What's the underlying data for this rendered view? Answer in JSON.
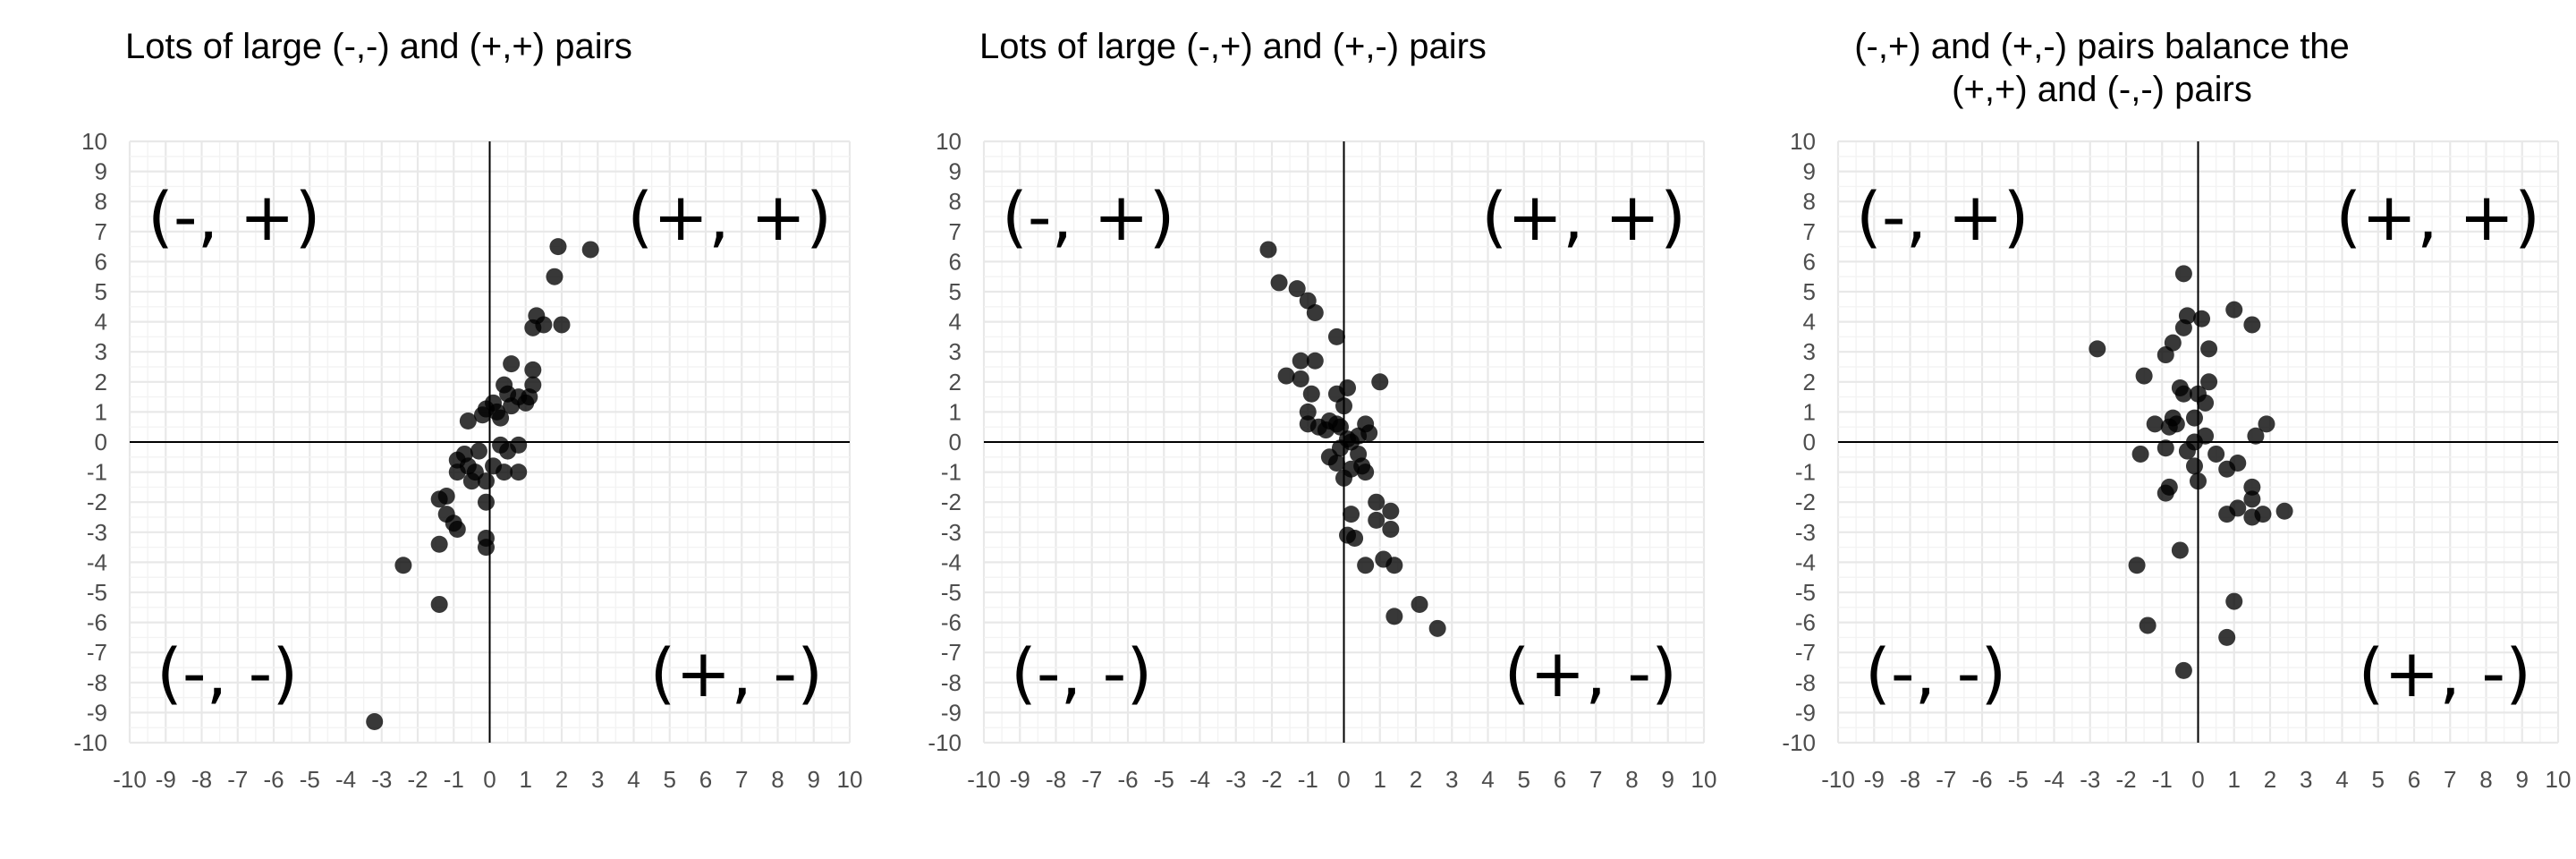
{
  "chart_data": [
    {
      "type": "scatter",
      "title": [
        "Lots of large (-,-) and (+,+) pairs"
      ],
      "xlim": [
        -10,
        10
      ],
      "ylim": [
        -10,
        10
      ],
      "x_ticks": [
        "-10",
        "-9",
        "-8",
        "-7",
        "-6",
        "-5",
        "-4",
        "-3",
        "-2",
        "-1",
        "0",
        "1",
        "2",
        "3",
        "4",
        "5",
        "6",
        "7",
        "8",
        "9",
        "10"
      ],
      "y_ticks": [
        "10",
        "9",
        "8",
        "7",
        "6",
        "5",
        "4",
        "3",
        "2",
        "1",
        "0",
        "-1",
        "-2",
        "-3",
        "-4",
        "-5",
        "-6",
        "-7",
        "-8",
        "-9",
        "-10"
      ],
      "grid": true,
      "quadrant_labels": {
        "top_left": "(-, +)",
        "top_right": "(+, +)",
        "bottom_left": "(-, -)",
        "bottom_right": "(+, -)"
      },
      "points": [
        {
          "x": -3.2,
          "y": -9.3
        },
        {
          "x": -2.4,
          "y": -4.1
        },
        {
          "x": -1.4,
          "y": -5.4
        },
        {
          "x": -1.4,
          "y": -3.4
        },
        {
          "x": -1.4,
          "y": -1.9
        },
        {
          "x": -1.2,
          "y": -2.4
        },
        {
          "x": -1.0,
          "y": -2.7
        },
        {
          "x": -0.9,
          "y": -2.9
        },
        {
          "x": -1.2,
          "y": -1.8
        },
        {
          "x": -0.9,
          "y": -1.0
        },
        {
          "x": -0.9,
          "y": -0.6
        },
        {
          "x": -0.7,
          "y": -0.4
        },
        {
          "x": -0.6,
          "y": -0.8
        },
        {
          "x": -0.5,
          "y": -1.3
        },
        {
          "x": -0.4,
          "y": -1.0
        },
        {
          "x": -0.3,
          "y": -0.3
        },
        {
          "x": -0.1,
          "y": -1.3
        },
        {
          "x": -0.1,
          "y": -2.0
        },
        {
          "x": -0.1,
          "y": -3.2
        },
        {
          "x": -0.1,
          "y": -3.5
        },
        {
          "x": -0.6,
          "y": 0.7
        },
        {
          "x": -0.2,
          "y": 0.9
        },
        {
          "x": -0.1,
          "y": 1.1
        },
        {
          "x": 0.1,
          "y": 1.3
        },
        {
          "x": 0.2,
          "y": 1.0
        },
        {
          "x": 0.3,
          "y": 0.8
        },
        {
          "x": 0.4,
          "y": 1.9
        },
        {
          "x": 0.5,
          "y": 1.6
        },
        {
          "x": 0.6,
          "y": 1.2
        },
        {
          "x": 0.6,
          "y": 2.6
        },
        {
          "x": 0.8,
          "y": 1.5
        },
        {
          "x": 1.0,
          "y": 1.3
        },
        {
          "x": 1.1,
          "y": 1.5
        },
        {
          "x": 1.2,
          "y": 1.9
        },
        {
          "x": 1.2,
          "y": 2.4
        },
        {
          "x": 1.2,
          "y": 3.8
        },
        {
          "x": 1.3,
          "y": 4.2
        },
        {
          "x": 1.5,
          "y": 3.9
        },
        {
          "x": 1.8,
          "y": 5.5
        },
        {
          "x": 1.9,
          "y": 6.5
        },
        {
          "x": 2.0,
          "y": 3.9
        },
        {
          "x": 2.8,
          "y": 6.4
        },
        {
          "x": 0.3,
          "y": -0.1
        },
        {
          "x": 0.5,
          "y": -0.3
        },
        {
          "x": 0.8,
          "y": -0.1
        },
        {
          "x": 0.4,
          "y": -1.0
        },
        {
          "x": 0.8,
          "y": -1.0
        },
        {
          "x": 0.1,
          "y": -0.8
        }
      ]
    },
    {
      "type": "scatter",
      "title": [
        "Lots of large (-,+) and (+,-) pairs"
      ],
      "xlim": [
        -10,
        10
      ],
      "ylim": [
        -10,
        10
      ],
      "x_ticks": [
        "-10",
        "-9",
        "-8",
        "-7",
        "-6",
        "-5",
        "-4",
        "-3",
        "-2",
        "-1",
        "0",
        "1",
        "2",
        "3",
        "4",
        "5",
        "6",
        "7",
        "8",
        "9",
        "10"
      ],
      "y_ticks": [
        "10",
        "9",
        "8",
        "7",
        "6",
        "5",
        "4",
        "3",
        "2",
        "1",
        "0",
        "-1",
        "-2",
        "-3",
        "-4",
        "-5",
        "-6",
        "-7",
        "-8",
        "-9",
        "-10"
      ],
      "grid": true,
      "quadrant_labels": {
        "top_left": "(-, +)",
        "top_right": "(+, +)",
        "bottom_left": "(-, -)",
        "bottom_right": "(+, -)"
      },
      "points": [
        {
          "x": -2.1,
          "y": 6.4
        },
        {
          "x": -1.8,
          "y": 5.3
        },
        {
          "x": -1.3,
          "y": 5.1
        },
        {
          "x": -1.0,
          "y": 4.7
        },
        {
          "x": -0.8,
          "y": 4.3
        },
        {
          "x": -0.2,
          "y": 3.5
        },
        {
          "x": -1.2,
          "y": 2.7
        },
        {
          "x": -0.8,
          "y": 2.7
        },
        {
          "x": -1.6,
          "y": 2.2
        },
        {
          "x": -1.2,
          "y": 2.1
        },
        {
          "x": -0.9,
          "y": 1.6
        },
        {
          "x": -1.0,
          "y": 1.0
        },
        {
          "x": -1.0,
          "y": 0.6
        },
        {
          "x": -0.7,
          "y": 0.5
        },
        {
          "x": -0.4,
          "y": 0.7
        },
        {
          "x": -0.2,
          "y": 0.6
        },
        {
          "x": 0.0,
          "y": 1.2
        },
        {
          "x": 0.1,
          "y": 1.8
        },
        {
          "x": -0.2,
          "y": 1.6
        },
        {
          "x": 1.0,
          "y": 2.0
        },
        {
          "x": 0.6,
          "y": 0.6
        },
        {
          "x": 0.4,
          "y": 0.2
        },
        {
          "x": 0.1,
          "y": 0.1
        },
        {
          "x": -0.1,
          "y": -0.2
        },
        {
          "x": -0.4,
          "y": -0.5
        },
        {
          "x": -0.2,
          "y": -0.7
        },
        {
          "x": 0.2,
          "y": -0.9
        },
        {
          "x": 0.0,
          "y": -1.2
        },
        {
          "x": 0.4,
          "y": -0.4
        },
        {
          "x": 0.5,
          "y": -0.8
        },
        {
          "x": 0.6,
          "y": -1.0
        },
        {
          "x": 0.9,
          "y": -2.0
        },
        {
          "x": 0.9,
          "y": -2.6
        },
        {
          "x": 1.3,
          "y": -2.3
        },
        {
          "x": 1.3,
          "y": -2.9
        },
        {
          "x": 0.2,
          "y": -2.4
        },
        {
          "x": 0.1,
          "y": -3.1
        },
        {
          "x": 0.3,
          "y": -3.2
        },
        {
          "x": 0.6,
          "y": -4.1
        },
        {
          "x": 1.1,
          "y": -3.9
        },
        {
          "x": 1.4,
          "y": -4.1
        },
        {
          "x": 2.1,
          "y": -5.4
        },
        {
          "x": 1.4,
          "y": -5.8
        },
        {
          "x": 2.6,
          "y": -6.2
        },
        {
          "x": -0.1,
          "y": 0.5
        },
        {
          "x": 0.2,
          "y": 0.0
        },
        {
          "x": -0.5,
          "y": 0.4
        },
        {
          "x": 0.7,
          "y": 0.3
        }
      ]
    },
    {
      "type": "scatter",
      "title": [
        "(-,+) and (+,-) pairs balance the",
        "(+,+) and (-,-) pairs"
      ],
      "xlim": [
        -10,
        10
      ],
      "ylim": [
        -10,
        10
      ],
      "x_ticks": [
        "-10",
        "-9",
        "-8",
        "-7",
        "-6",
        "-5",
        "-4",
        "-3",
        "-2",
        "-1",
        "0",
        "1",
        "2",
        "3",
        "4",
        "5",
        "6",
        "7",
        "8",
        "9",
        "10"
      ],
      "y_ticks": [
        "10",
        "9",
        "8",
        "7",
        "6",
        "5",
        "4",
        "3",
        "2",
        "1",
        "0",
        "-1",
        "-2",
        "-3",
        "-4",
        "-5",
        "-6",
        "-7",
        "-8",
        "-9",
        "-10"
      ],
      "grid": true,
      "quadrant_labels": {
        "top_left": "(-, +)",
        "top_right": "(+, +)",
        "bottom_left": "(-, -)",
        "bottom_right": "(+, -)"
      },
      "points": [
        {
          "x": -2.8,
          "y": 3.1
        },
        {
          "x": -1.5,
          "y": 2.2
        },
        {
          "x": -1.2,
          "y": 0.6
        },
        {
          "x": -1.6,
          "y": -0.4
        },
        {
          "x": -0.9,
          "y": -0.2
        },
        {
          "x": -0.7,
          "y": 0.8
        },
        {
          "x": -0.9,
          "y": 2.9
        },
        {
          "x": -0.7,
          "y": 3.3
        },
        {
          "x": -0.6,
          "y": 0.6
        },
        {
          "x": -0.8,
          "y": -1.5
        },
        {
          "x": -0.9,
          "y": -1.7
        },
        {
          "x": -0.5,
          "y": 1.8
        },
        {
          "x": -0.4,
          "y": 1.6
        },
        {
          "x": -0.4,
          "y": 5.6
        },
        {
          "x": -0.3,
          "y": 4.2
        },
        {
          "x": 0.1,
          "y": 4.1
        },
        {
          "x": -0.4,
          "y": 3.8
        },
        {
          "x": 0.3,
          "y": 3.1
        },
        {
          "x": 0.3,
          "y": 2.0
        },
        {
          "x": 0.2,
          "y": 1.3
        },
        {
          "x": 0.0,
          "y": 1.6
        },
        {
          "x": -0.1,
          "y": 0.8
        },
        {
          "x": 0.2,
          "y": 0.2
        },
        {
          "x": -0.3,
          "y": -0.3
        },
        {
          "x": -0.1,
          "y": -0.8
        },
        {
          "x": 0.0,
          "y": -1.3
        },
        {
          "x": -1.7,
          "y": -4.1
        },
        {
          "x": -0.5,
          "y": -3.6
        },
        {
          "x": -1.4,
          "y": -6.1
        },
        {
          "x": -0.4,
          "y": -7.6
        },
        {
          "x": 0.8,
          "y": -6.5
        },
        {
          "x": 1.0,
          "y": -5.3
        },
        {
          "x": 0.8,
          "y": -0.9
        },
        {
          "x": 1.1,
          "y": -0.7
        },
        {
          "x": 0.8,
          "y": -2.4
        },
        {
          "x": 1.1,
          "y": -2.2
        },
        {
          "x": 1.5,
          "y": -1.5
        },
        {
          "x": 1.5,
          "y": -1.9
        },
        {
          "x": 1.5,
          "y": -2.5
        },
        {
          "x": 1.8,
          "y": -2.4
        },
        {
          "x": 2.4,
          "y": -2.3
        },
        {
          "x": 1.0,
          "y": 4.4
        },
        {
          "x": 1.5,
          "y": 3.9
        },
        {
          "x": 1.6,
          "y": 0.2
        },
        {
          "x": 1.9,
          "y": 0.6
        },
        {
          "x": -0.1,
          "y": 0.0
        },
        {
          "x": -0.8,
          "y": 0.5
        },
        {
          "x": 0.5,
          "y": -0.4
        }
      ]
    }
  ]
}
